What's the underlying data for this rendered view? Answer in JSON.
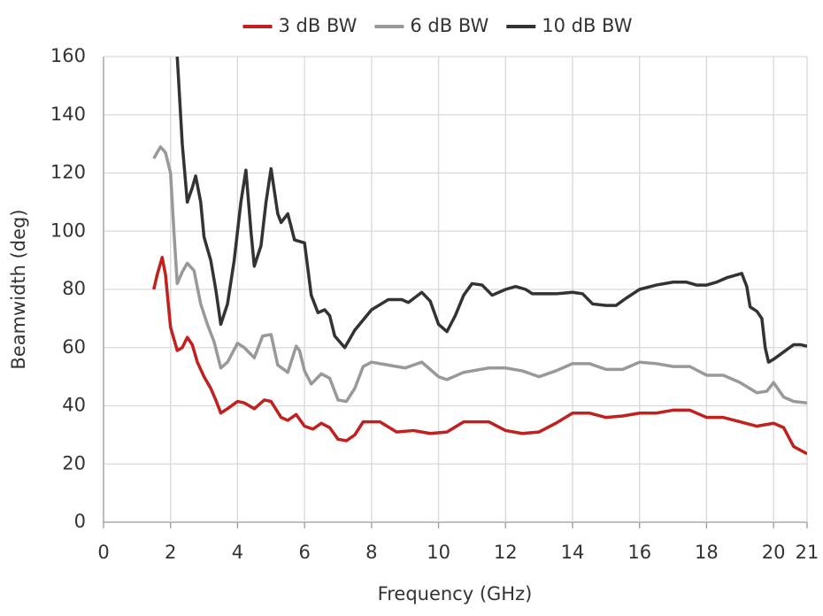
{
  "chart_data": {
    "type": "line",
    "x_label": "Frequency (GHz)",
    "y_label": "Beamwidth (deg)",
    "xlim": [
      0,
      21
    ],
    "xticks": [
      0,
      2,
      4,
      6,
      8,
      10,
      12,
      14,
      16,
      18,
      20,
      21
    ],
    "ylim": [
      0,
      160
    ],
    "yticks": [
      0,
      20,
      40,
      60,
      80,
      100,
      120,
      140,
      160
    ],
    "grid": true,
    "legend": "top",
    "series": [
      {
        "name": "3 dB BW",
        "color": "#c0201e",
        "x": [
          1.5,
          1.6,
          1.75,
          1.85,
          2.0,
          2.2,
          2.35,
          2.5,
          2.65,
          2.8,
          3.0,
          3.2,
          3.35,
          3.5,
          3.7,
          4.0,
          4.2,
          4.5,
          4.8,
          5.0,
          5.3,
          5.5,
          5.75,
          6.0,
          6.25,
          6.5,
          6.75,
          7.0,
          7.25,
          7.5,
          7.75,
          8.25,
          8.75,
          9.25,
          9.75,
          10.25,
          10.75,
          11.5,
          12.0,
          12.5,
          13.0,
          13.5,
          14.0,
          14.5,
          15.0,
          15.5,
          16.0,
          16.5,
          17.0,
          17.5,
          18.0,
          18.5,
          19.0,
          19.5,
          20.0,
          20.3,
          20.6,
          21
        ],
        "values": [
          80,
          85,
          91,
          85,
          67,
          59,
          60,
          63.5,
          61,
          55,
          50,
          46,
          42,
          37.5,
          39,
          41.5,
          41,
          39,
          42,
          41.5,
          36,
          35,
          37,
          33,
          32,
          34,
          32.5,
          28.5,
          28,
          30,
          34.5,
          34.5,
          31,
          31.5,
          30.5,
          31,
          34.5,
          34.5,
          31.5,
          30.5,
          31,
          34,
          37.5,
          37.5,
          36,
          36.5,
          37.5,
          37.5,
          38.5,
          38.5,
          36,
          36,
          34.5,
          33,
          34,
          32.5,
          26,
          23.5
        ]
      },
      {
        "name": "6 dB BW",
        "color": "#999999",
        "x": [
          1.5,
          1.7,
          1.85,
          2.0,
          2.1,
          2.2,
          2.35,
          2.5,
          2.7,
          2.9,
          3.1,
          3.3,
          3.5,
          3.7,
          4.0,
          4.2,
          4.5,
          4.75,
          5.0,
          5.2,
          5.5,
          5.75,
          5.85,
          6.0,
          6.2,
          6.5,
          6.75,
          7.0,
          7.25,
          7.5,
          7.75,
          8.0,
          8.5,
          9.0,
          9.5,
          10.0,
          10.25,
          10.75,
          11.5,
          12.0,
          12.5,
          13.0,
          13.5,
          14.0,
          14.5,
          15.0,
          15.5,
          16.0,
          16.5,
          17.0,
          17.5,
          18.0,
          18.5,
          19.0,
          19.5,
          19.8,
          20.0,
          20.3,
          20.6,
          21
        ],
        "values": [
          125,
          129,
          127,
          120,
          100,
          82,
          86,
          89,
          86.5,
          75,
          68,
          62,
          53,
          55,
          61.5,
          60,
          56.5,
          64,
          64.5,
          54,
          51.5,
          60.5,
          59,
          52,
          47.5,
          51,
          49.5,
          42,
          41.5,
          46,
          53.5,
          55,
          54,
          53,
          55,
          50,
          49,
          51.5,
          53,
          53,
          52,
          50,
          52,
          54.5,
          54.5,
          52.5,
          52.5,
          55,
          54.5,
          53.5,
          53.5,
          50.5,
          50.5,
          48,
          44.5,
          45,
          48,
          43,
          41.5,
          41
        ]
      },
      {
        "name": "10 dB BW",
        "color": "#333333",
        "x": [
          2.2,
          2.35,
          2.5,
          2.65,
          2.75,
          2.9,
          3.0,
          3.2,
          3.35,
          3.5,
          3.7,
          3.9,
          4.1,
          4.25,
          4.4,
          4.5,
          4.7,
          4.85,
          5.0,
          5.2,
          5.3,
          5.5,
          5.7,
          6.0,
          6.2,
          6.4,
          6.6,
          6.75,
          6.9,
          7.2,
          7.5,
          8.0,
          8.5,
          8.9,
          9.1,
          9.5,
          9.75,
          10.0,
          10.25,
          10.5,
          10.75,
          11.0,
          11.3,
          11.6,
          12.0,
          12.3,
          12.6,
          12.8,
          13.5,
          14.0,
          14.3,
          14.6,
          15.0,
          15.3,
          15.6,
          16.0,
          16.5,
          17.0,
          17.4,
          17.7,
          18.0,
          18.3,
          18.6,
          18.9,
          19.05,
          19.2,
          19.3,
          19.5,
          19.65,
          19.75,
          19.85,
          20.0,
          20.3,
          20.6,
          20.8,
          21
        ],
        "values": [
          160,
          130,
          110,
          115,
          119,
          110,
          98,
          90,
          80,
          68,
          75,
          90,
          110,
          121,
          100,
          88,
          95,
          110,
          121.5,
          106,
          103,
          106,
          97,
          96,
          78,
          72,
          73,
          71,
          64,
          60,
          66,
          73,
          76.5,
          76.5,
          75.5,
          79,
          76,
          68,
          65.5,
          71,
          78,
          82,
          81.5,
          78,
          80,
          81,
          80,
          78.5,
          78.5,
          79,
          78.5,
          75,
          74.5,
          74.5,
          77,
          80,
          81.5,
          82.5,
          82.5,
          81.5,
          81.5,
          82.5,
          84,
          85,
          85.5,
          81,
          74,
          72.5,
          70,
          60,
          55,
          56,
          58.5,
          61,
          61,
          60.5
        ]
      }
    ]
  }
}
